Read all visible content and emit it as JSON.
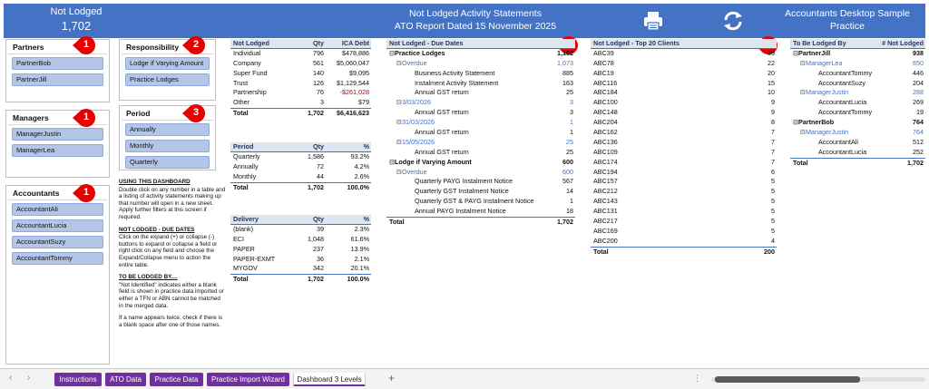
{
  "banner": {
    "left_title": "Not Lodged",
    "left_value": "1,702",
    "center_line1": "Not Lodged Activity Statements",
    "center_line2": "ATO Report Dated 15 November 2025",
    "right_line1": "Accountants Desktop Sample",
    "right_line2": "Practice",
    "print_icon": "printer-icon",
    "refresh_icon": "refresh-icon",
    "color": "#4472c4"
  },
  "slicers": {
    "partners": {
      "title": "Partners",
      "badge": "1",
      "items": [
        "PartnerBob",
        "PartnerJill"
      ]
    },
    "managers": {
      "title": "Managers",
      "badge": "1",
      "items": [
        "ManagerJustin",
        "ManagerLea"
      ]
    },
    "accountants": {
      "title": "Accountants",
      "badge": "1",
      "items": [
        "AccountantAli",
        "AccountantLucia",
        "AccountantSuzy",
        "AccountantTommy"
      ]
    },
    "responsibility": {
      "title": "Responsibility",
      "badge": "2",
      "items": [
        "Lodge if Varying Amount",
        "Practice Lodges"
      ]
    },
    "period": {
      "title": "Period",
      "badge": "3",
      "items": [
        "Annually",
        "Monthly",
        "Quarterly"
      ]
    }
  },
  "instructions": {
    "h1": "USING THIS DASHBOARD",
    "p1": "Double click on any number in a table and a listing of activity statements making up that number will open in a new sheet.  Apply further filters at this screen if required.",
    "h2": "NOT LODGED - DUE DATES",
    "p2": "Click on the expand (+) or collapse (-) buttons to expand or collapse a field or right click on any field and choose the Expand/Collapse menu to action the entire table.",
    "h3": "TO BE LODGED BY....",
    "p3": "\"Not Identified\" indicates either a blank field is  shown in practice data imported or either a TFN or ABN cannot be matched in the merged data.",
    "p4": "If a name appears twice, check if there is a blank space after one of those names."
  },
  "entity_table": {
    "headers": [
      "Not Lodged",
      "Qty",
      "ICA Debt"
    ],
    "rows": [
      [
        "Individual",
        "796",
        "$478,886"
      ],
      [
        "Company",
        "561",
        "$5,060,047"
      ],
      [
        "Super Fund",
        "140",
        "$9,095"
      ],
      [
        "Trust",
        "126",
        "$1,129,544"
      ],
      [
        "Partnership",
        "76",
        "-$261,028"
      ],
      [
        "Other",
        "3",
        "$79"
      ]
    ],
    "total": [
      "Total",
      "1,702",
      "$6,416,623"
    ]
  },
  "period_table": {
    "headers": [
      "Period",
      "Qty",
      "%"
    ],
    "rows": [
      [
        "Quarterly",
        "1,586",
        "93.2%"
      ],
      [
        "Annually",
        "72",
        "4.2%"
      ],
      [
        "Monthly",
        "44",
        "2.6%"
      ]
    ],
    "total": [
      "Total",
      "1,702",
      "100.0%"
    ]
  },
  "delivery_table": {
    "headers": [
      "Delivery",
      "Qty",
      "%"
    ],
    "rows": [
      [
        "(blank)",
        "39",
        "2.3%"
      ],
      [
        "ECI",
        "1,048",
        "61.6%"
      ],
      [
        "PAPER",
        "237",
        "13.9%"
      ],
      [
        "PAPER-EXMT",
        "36",
        "2.1%"
      ],
      [
        "MYGOV",
        "342",
        "20.1%"
      ]
    ],
    "total": [
      "Total",
      "1,702",
      "100.0%"
    ]
  },
  "due_dates_table": {
    "header": "Not Lodged - Due Dates",
    "badge": "4",
    "rows": [
      {
        "label": "Practice Lodges",
        "value": "1,102",
        "level": 0,
        "exp": "⊟",
        "style": "bold"
      },
      {
        "label": "Overdue",
        "value": "1,073",
        "level": 1,
        "exp": "⊟",
        "style": "blue"
      },
      {
        "label": "Business Activity Statement",
        "value": "885",
        "level": 2,
        "exp": "",
        "style": ""
      },
      {
        "label": "Instalment Activity Statement",
        "value": "163",
        "level": 2,
        "exp": "",
        "style": ""
      },
      {
        "label": "Annual GST return",
        "value": "25",
        "level": 2,
        "exp": "",
        "style": ""
      },
      {
        "label": "3/03/2026",
        "value": "3",
        "level": 1,
        "exp": "⊟",
        "style": "blue"
      },
      {
        "label": "Annual GST return",
        "value": "3",
        "level": 2,
        "exp": "",
        "style": ""
      },
      {
        "label": "31/03/2026",
        "value": "1",
        "level": 1,
        "exp": "⊟",
        "style": "blue"
      },
      {
        "label": "Annual GST return",
        "value": "1",
        "level": 2,
        "exp": "",
        "style": ""
      },
      {
        "label": "15/05/2026",
        "value": "25",
        "level": 1,
        "exp": "⊟",
        "style": "blue"
      },
      {
        "label": "Annual GST return",
        "value": "25",
        "level": 2,
        "exp": "",
        "style": ""
      },
      {
        "label": "Lodge if Varying Amount",
        "value": "600",
        "level": 0,
        "exp": "⊟",
        "style": "bold"
      },
      {
        "label": "Overdue",
        "value": "600",
        "level": 1,
        "exp": "⊟",
        "style": "blue"
      },
      {
        "label": "Quarterly PAYG Instalment Notice",
        "value": "567",
        "level": 2,
        "exp": "",
        "style": ""
      },
      {
        "label": "Quarterly GST Instalment Notice",
        "value": "14",
        "level": 2,
        "exp": "",
        "style": ""
      },
      {
        "label": "Quarterly GST & PAYG Instalment Notice",
        "value": "1",
        "level": 2,
        "exp": "",
        "style": ""
      },
      {
        "label": "Annual PAYG Instalment Notice",
        "value": "18",
        "level": 2,
        "exp": "",
        "style": ""
      }
    ],
    "total": [
      "Total",
      "1,702"
    ]
  },
  "top20_table": {
    "header": "Not Lodged - Top 20 Clients",
    "badge": "5",
    "rows": [
      [
        "ABC39",
        "39"
      ],
      [
        "ABC78",
        "22"
      ],
      [
        "ABC19",
        "20"
      ],
      [
        "ABC116",
        "15"
      ],
      [
        "ABC184",
        "10"
      ],
      [
        "ABC100",
        "9"
      ],
      [
        "ABC148",
        "9"
      ],
      [
        "ABC204",
        "8"
      ],
      [
        "ABC162",
        "7"
      ],
      [
        "ABC136",
        "7"
      ],
      [
        "ABC109",
        "7"
      ],
      [
        "ABC174",
        "7"
      ],
      [
        "ABC194",
        "6"
      ],
      [
        "ABC157",
        "5"
      ],
      [
        "ABC212",
        "5"
      ],
      [
        "ABC143",
        "5"
      ],
      [
        "ABC131",
        "5"
      ],
      [
        "ABC217",
        "5"
      ],
      [
        "ABC169",
        "5"
      ],
      [
        "ABC200",
        "4"
      ]
    ],
    "total": [
      "Total",
      "200"
    ]
  },
  "lodged_by_table": {
    "headers": [
      "To Be Lodged By",
      "# Not Lodged"
    ],
    "rows": [
      {
        "label": "PartnerJill",
        "value": "938",
        "level": 0,
        "exp": "⊟",
        "style": "bold"
      },
      {
        "label": "ManagerLea",
        "value": "650",
        "level": 1,
        "exp": "⊟",
        "style": "blue"
      },
      {
        "label": "AccountantTommy",
        "value": "446",
        "level": 2,
        "exp": "",
        "style": ""
      },
      {
        "label": "AccountantSuzy",
        "value": "204",
        "level": 2,
        "exp": "",
        "style": ""
      },
      {
        "label": "ManagerJustin",
        "value": "288",
        "level": 1,
        "exp": "⊟",
        "style": "blue"
      },
      {
        "label": "AccountantLucia",
        "value": "269",
        "level": 2,
        "exp": "",
        "style": ""
      },
      {
        "label": "AccountantTommy",
        "value": "19",
        "level": 2,
        "exp": "",
        "style": ""
      },
      {
        "label": "PartnerBob",
        "value": "764",
        "level": 0,
        "exp": "⊟",
        "style": "bold"
      },
      {
        "label": "ManagerJustin",
        "value": "764",
        "level": 1,
        "exp": "⊟",
        "style": "blue"
      },
      {
        "label": "AccountantAli",
        "value": "512",
        "level": 2,
        "exp": "",
        "style": ""
      },
      {
        "label": "AccountantLucia",
        "value": "252",
        "level": 2,
        "exp": "",
        "style": ""
      }
    ],
    "total": [
      "Total",
      "1,702"
    ]
  },
  "sheet_tabs": {
    "tabs": [
      "Instructions",
      "ATO Data",
      "Practice Data",
      "Practice Import Wizard",
      "Dashboard 3 Levels"
    ],
    "active": "Dashboard 3 Levels",
    "add": "+",
    "nav_prev": "‹",
    "nav_next": "›",
    "more": "⋮",
    "tab_color": "#7030a0"
  }
}
